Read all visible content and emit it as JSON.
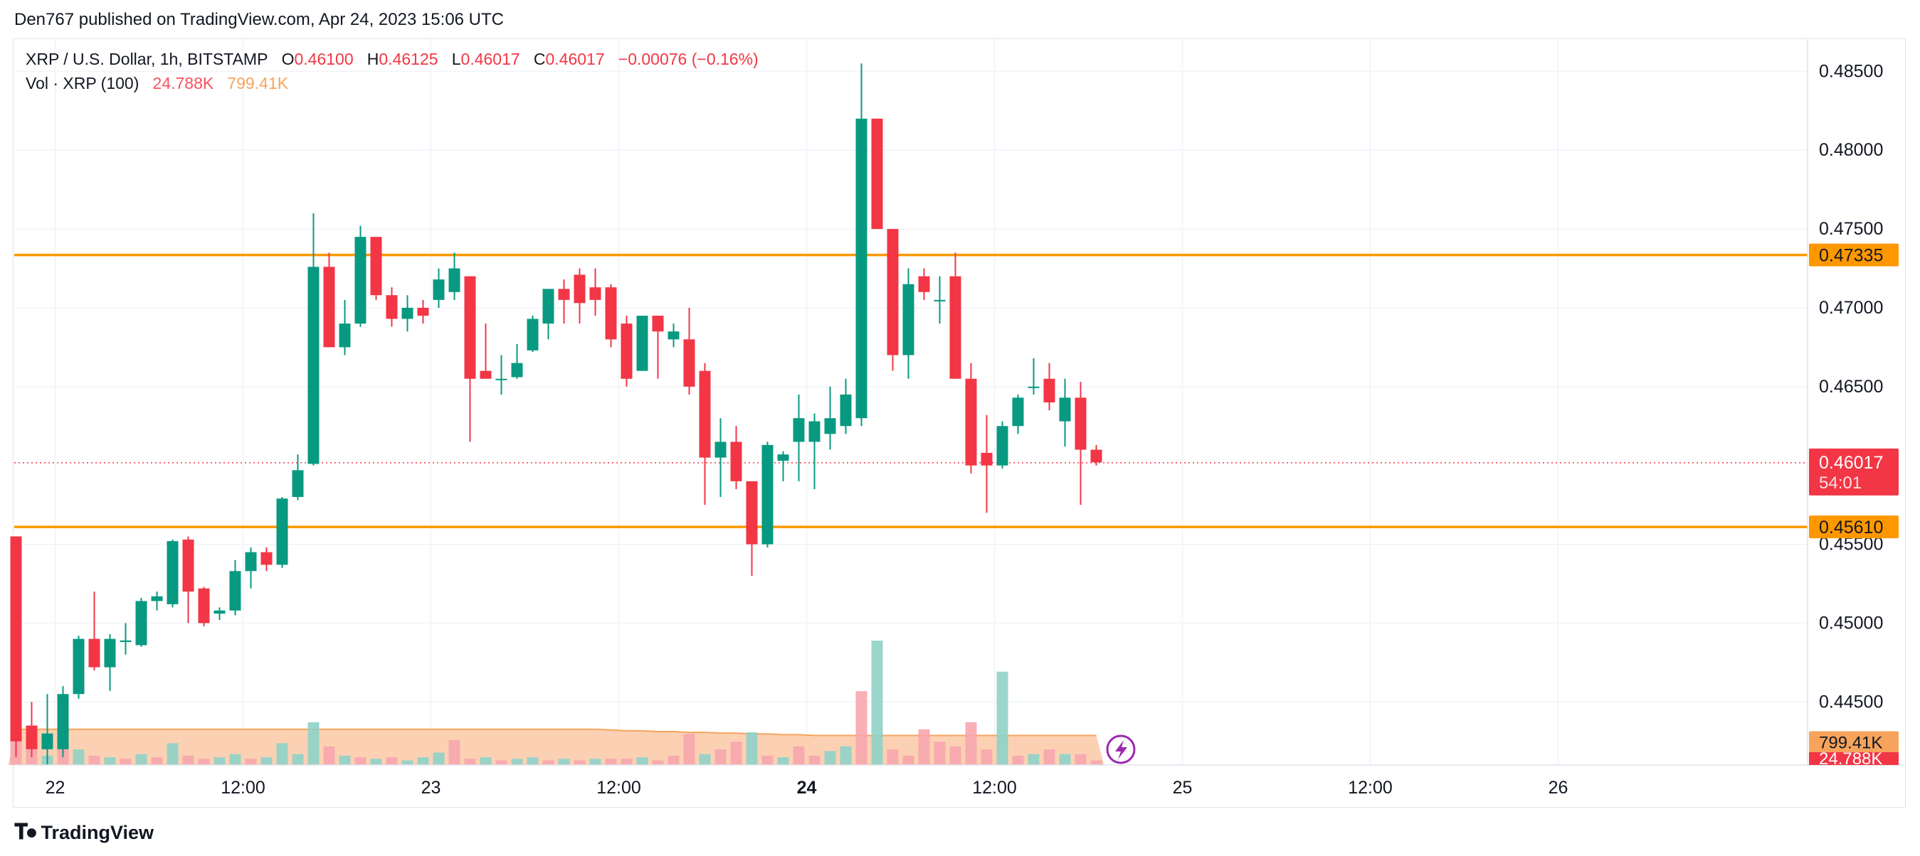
{
  "header": {
    "published_text": "Den767 published on TradingView.com, Apr 24, 2023 15:06 UTC"
  },
  "legend": {
    "symbol": "XRP / U.S. Dollar, 1h, BITSTAMP",
    "o_label": "O",
    "o_value": "0.46100",
    "h_label": "H",
    "h_value": "0.46125",
    "l_label": "L",
    "l_value": "0.46017",
    "c_label": "C",
    "c_value": "0.46017",
    "change": "−0.00076 (−0.16%)",
    "vol_label": "Vol · XRP (100)",
    "vol_value": "24.788K",
    "vol_ma_value": "799.41K"
  },
  "footer": {
    "brand": "TradingView"
  },
  "colors": {
    "up": "#089981",
    "down": "#f23645",
    "vol_up": "#8fd1c7",
    "vol_down": "#f7a6ad",
    "vol_ma_fill": "#fcc9a6",
    "level": "#ff9800",
    "grid": "#f0f3fa"
  },
  "chart_data": {
    "type": "candlestick",
    "symbol": "XRP / U.S. Dollar",
    "interval": "1h",
    "exchange": "BITSTAMP",
    "y_ticks": [
      "0.48500",
      "0.48000",
      "0.47500",
      "0.47000",
      "0.46500",
      "0.45500",
      "0.45000",
      "0.44500"
    ],
    "x_ticks": [
      {
        "label": "22",
        "bold": false,
        "index": 2.5
      },
      {
        "label": "12:00",
        "bold": false,
        "index": 14.5
      },
      {
        "label": "23",
        "bold": false,
        "index": 26.5
      },
      {
        "label": "12:00",
        "bold": false,
        "index": 38.5
      },
      {
        "label": "24",
        "bold": true,
        "index": 50.5
      },
      {
        "label": "12:00",
        "bold": false,
        "index": 62.5
      },
      {
        "label": "25",
        "bold": false,
        "index": 74.5
      },
      {
        "label": "12:00",
        "bold": false,
        "index": 86.5
      },
      {
        "label": "26",
        "bold": false,
        "index": 98.5
      }
    ],
    "ylim": [
      0.441,
      0.487
    ],
    "xlim": [
      0,
      113
    ],
    "grid": true,
    "horizontal_levels": [
      {
        "value": 0.47335,
        "label": "0.47335",
        "color": "#ff9800"
      },
      {
        "value": 0.4561,
        "label": "0.45610",
        "color": "#ff9800"
      }
    ],
    "last_price": {
      "value": 0.46017,
      "label": "0.46017",
      "countdown": "54:01"
    },
    "volume_axis_labels": [
      {
        "label": "799.41K",
        "kind": "ma"
      },
      {
        "label": "24.788K",
        "kind": "last"
      }
    ],
    "candles": [
      {
        "o": 0.4555,
        "h": 0.4555,
        "l": 0.4415,
        "c": 0.4425
      },
      {
        "o": 0.4435,
        "h": 0.445,
        "l": 0.4415,
        "c": 0.442
      },
      {
        "o": 0.442,
        "h": 0.4455,
        "l": 0.441,
        "c": 0.443
      },
      {
        "o": 0.442,
        "h": 0.446,
        "l": 0.4415,
        "c": 0.4455
      },
      {
        "o": 0.4455,
        "h": 0.4492,
        "l": 0.4452,
        "c": 0.449
      },
      {
        "o": 0.449,
        "h": 0.452,
        "l": 0.447,
        "c": 0.4472
      },
      {
        "o": 0.4472,
        "h": 0.4493,
        "l": 0.4457,
        "c": 0.449
      },
      {
        "o": 0.4488,
        "h": 0.45,
        "l": 0.448,
        "c": 0.4489
      },
      {
        "o": 0.4486,
        "h": 0.4516,
        "l": 0.4485,
        "c": 0.4514
      },
      {
        "o": 0.4514,
        "h": 0.452,
        "l": 0.4508,
        "c": 0.4517
      },
      {
        "o": 0.4512,
        "h": 0.4553,
        "l": 0.451,
        "c": 0.4552
      },
      {
        "o": 0.4553,
        "h": 0.4555,
        "l": 0.45,
        "c": 0.452
      },
      {
        "o": 0.4522,
        "h": 0.4523,
        "l": 0.4498,
        "c": 0.45
      },
      {
        "o": 0.4506,
        "h": 0.451,
        "l": 0.4502,
        "c": 0.4508
      },
      {
        "o": 0.4508,
        "h": 0.454,
        "l": 0.4505,
        "c": 0.4533
      },
      {
        "o": 0.4533,
        "h": 0.4548,
        "l": 0.4522,
        "c": 0.4545
      },
      {
        "o": 0.4545,
        "h": 0.4548,
        "l": 0.4533,
        "c": 0.4537
      },
      {
        "o": 0.4537,
        "h": 0.458,
        "l": 0.4535,
        "c": 0.4579
      },
      {
        "o": 0.458,
        "h": 0.4607,
        "l": 0.4578,
        "c": 0.4597
      },
      {
        "o": 0.4601,
        "h": 0.476,
        "l": 0.46,
        "c": 0.4726
      },
      {
        "o": 0.4726,
        "h": 0.4735,
        "l": 0.4675,
        "c": 0.4675
      },
      {
        "o": 0.4675,
        "h": 0.4705,
        "l": 0.467,
        "c": 0.469
      },
      {
        "o": 0.469,
        "h": 0.4752,
        "l": 0.4688,
        "c": 0.4745
      },
      {
        "o": 0.4745,
        "h": 0.4745,
        "l": 0.4705,
        "c": 0.4708
      },
      {
        "o": 0.4708,
        "h": 0.4713,
        "l": 0.4688,
        "c": 0.4693
      },
      {
        "o": 0.4693,
        "h": 0.4708,
        "l": 0.4685,
        "c": 0.47
      },
      {
        "o": 0.47,
        "h": 0.4705,
        "l": 0.469,
        "c": 0.4695
      },
      {
        "o": 0.4705,
        "h": 0.4725,
        "l": 0.47,
        "c": 0.4718
      },
      {
        "o": 0.471,
        "h": 0.4735,
        "l": 0.4705,
        "c": 0.4725
      },
      {
        "o": 0.472,
        "h": 0.472,
        "l": 0.4615,
        "c": 0.4655
      },
      {
        "o": 0.466,
        "h": 0.469,
        "l": 0.4655,
        "c": 0.4655
      },
      {
        "o": 0.4655,
        "h": 0.467,
        "l": 0.4645,
        "c": 0.4655
      },
      {
        "o": 0.4656,
        "h": 0.4677,
        "l": 0.4655,
        "c": 0.4665
      },
      {
        "o": 0.4673,
        "h": 0.4695,
        "l": 0.4672,
        "c": 0.4693
      },
      {
        "o": 0.469,
        "h": 0.471,
        "l": 0.468,
        "c": 0.4712
      },
      {
        "o": 0.4712,
        "h": 0.4718,
        "l": 0.469,
        "c": 0.4705
      },
      {
        "o": 0.4721,
        "h": 0.4725,
        "l": 0.469,
        "c": 0.4703
      },
      {
        "o": 0.4713,
        "h": 0.4725,
        "l": 0.4695,
        "c": 0.4705
      },
      {
        "o": 0.4713,
        "h": 0.4715,
        "l": 0.4675,
        "c": 0.468
      },
      {
        "o": 0.469,
        "h": 0.4695,
        "l": 0.465,
        "c": 0.4655
      },
      {
        "o": 0.466,
        "h": 0.4695,
        "l": 0.466,
        "c": 0.4695
      },
      {
        "o": 0.4695,
        "h": 0.4695,
        "l": 0.4655,
        "c": 0.4685
      },
      {
        "o": 0.468,
        "h": 0.469,
        "l": 0.4675,
        "c": 0.4685
      },
      {
        "o": 0.468,
        "h": 0.47,
        "l": 0.4645,
        "c": 0.465
      },
      {
        "o": 0.466,
        "h": 0.4665,
        "l": 0.4575,
        "c": 0.4605
      },
      {
        "o": 0.4605,
        "h": 0.463,
        "l": 0.458,
        "c": 0.4615
      },
      {
        "o": 0.4615,
        "h": 0.4625,
        "l": 0.4585,
        "c": 0.459
      },
      {
        "o": 0.459,
        "h": 0.459,
        "l": 0.453,
        "c": 0.455
      },
      {
        "o": 0.455,
        "h": 0.4615,
        "l": 0.4548,
        "c": 0.4613
      },
      {
        "o": 0.4603,
        "h": 0.4609,
        "l": 0.459,
        "c": 0.4607
      },
      {
        "o": 0.4615,
        "h": 0.4645,
        "l": 0.459,
        "c": 0.463
      },
      {
        "o": 0.4615,
        "h": 0.4633,
        "l": 0.4585,
        "c": 0.4628
      },
      {
        "o": 0.462,
        "h": 0.465,
        "l": 0.461,
        "c": 0.463
      },
      {
        "o": 0.4625,
        "h": 0.4655,
        "l": 0.462,
        "c": 0.4645
      },
      {
        "o": 0.463,
        "h": 0.4855,
        "l": 0.4625,
        "c": 0.482
      },
      {
        "o": 0.482,
        "h": 0.482,
        "l": 0.475,
        "c": 0.475
      },
      {
        "o": 0.475,
        "h": 0.475,
        "l": 0.466,
        "c": 0.467
      },
      {
        "o": 0.467,
        "h": 0.4725,
        "l": 0.4655,
        "c": 0.4715
      },
      {
        "o": 0.472,
        "h": 0.4725,
        "l": 0.4705,
        "c": 0.471
      },
      {
        "o": 0.4705,
        "h": 0.472,
        "l": 0.469,
        "c": 0.4705
      },
      {
        "o": 0.472,
        "h": 0.4735,
        "l": 0.4655,
        "c": 0.4655
      },
      {
        "o": 0.4655,
        "h": 0.4665,
        "l": 0.4595,
        "c": 0.46
      },
      {
        "o": 0.4608,
        "h": 0.4632,
        "l": 0.457,
        "c": 0.46
      },
      {
        "o": 0.46,
        "h": 0.4628,
        "l": 0.4598,
        "c": 0.4625
      },
      {
        "o": 0.4625,
        "h": 0.4645,
        "l": 0.462,
        "c": 0.4643
      },
      {
        "o": 0.465,
        "h": 0.4668,
        "l": 0.4645,
        "c": 0.465
      },
      {
        "o": 0.4655,
        "h": 0.4665,
        "l": 0.4635,
        "c": 0.464
      },
      {
        "o": 0.4628,
        "h": 0.4655,
        "l": 0.4612,
        "c": 0.4643
      },
      {
        "o": 0.4643,
        "h": 0.4653,
        "l": 0.4575,
        "c": 0.461
      },
      {
        "o": 0.461,
        "h": 0.4613,
        "l": 0.46,
        "c": 0.4602
      }
    ],
    "volumes": [
      {
        "v": 130,
        "up": false
      },
      {
        "v": 32,
        "up": false
      },
      {
        "v": 12,
        "up": true
      },
      {
        "v": 30,
        "up": false
      },
      {
        "v": 20,
        "up": true
      },
      {
        "v": 12,
        "up": false
      },
      {
        "v": 10,
        "up": true
      },
      {
        "v": 8,
        "up": false
      },
      {
        "v": 14,
        "up": true
      },
      {
        "v": 10,
        "up": false
      },
      {
        "v": 28,
        "up": true
      },
      {
        "v": 12,
        "up": false
      },
      {
        "v": 8,
        "up": false
      },
      {
        "v": 10,
        "up": true
      },
      {
        "v": 14,
        "up": true
      },
      {
        "v": 8,
        "up": false
      },
      {
        "v": 10,
        "up": true
      },
      {
        "v": 28,
        "up": true
      },
      {
        "v": 14,
        "up": true
      },
      {
        "v": 55,
        "up": true
      },
      {
        "v": 24,
        "up": false
      },
      {
        "v": 12,
        "up": true
      },
      {
        "v": 10,
        "up": false
      },
      {
        "v": 8,
        "up": true
      },
      {
        "v": 10,
        "up": false
      },
      {
        "v": 6,
        "up": true
      },
      {
        "v": 10,
        "up": true
      },
      {
        "v": 16,
        "up": true
      },
      {
        "v": 32,
        "up": false
      },
      {
        "v": 8,
        "up": false
      },
      {
        "v": 10,
        "up": true
      },
      {
        "v": 6,
        "up": false
      },
      {
        "v": 8,
        "up": true
      },
      {
        "v": 10,
        "up": true
      },
      {
        "v": 6,
        "up": false
      },
      {
        "v": 8,
        "up": true
      },
      {
        "v": 6,
        "up": false
      },
      {
        "v": 8,
        "up": true
      },
      {
        "v": 8,
        "up": false
      },
      {
        "v": 8,
        "up": false
      },
      {
        "v": 10,
        "up": true
      },
      {
        "v": 6,
        "up": false
      },
      {
        "v": 12,
        "up": false
      },
      {
        "v": 40,
        "up": false
      },
      {
        "v": 14,
        "up": true
      },
      {
        "v": 20,
        "up": false
      },
      {
        "v": 30,
        "up": false
      },
      {
        "v": 42,
        "up": true
      },
      {
        "v": 12,
        "up": false
      },
      {
        "v": 10,
        "up": true
      },
      {
        "v": 24,
        "up": false
      },
      {
        "v": 12,
        "up": false
      },
      {
        "v": 18,
        "up": true
      },
      {
        "v": 24,
        "up": true
      },
      {
        "v": 95,
        "up": false
      },
      {
        "v": 160,
        "up": true
      },
      {
        "v": 20,
        "up": false
      },
      {
        "v": 12,
        "up": false
      },
      {
        "v": 46,
        "up": false
      },
      {
        "v": 30,
        "up": false
      },
      {
        "v": 24,
        "up": false
      },
      {
        "v": 55,
        "up": false
      },
      {
        "v": 20,
        "up": false
      },
      {
        "v": 120,
        "up": true
      },
      {
        "v": 12,
        "up": false
      },
      {
        "v": 14,
        "up": true
      },
      {
        "v": 20,
        "up": false
      },
      {
        "v": 14,
        "up": true
      },
      {
        "v": 14,
        "up": false
      },
      {
        "v": 6,
        "up": false
      }
    ],
    "vol_ma": [
      46,
      46,
      46,
      46,
      46,
      46,
      46,
      46,
      46,
      46,
      46,
      46,
      46,
      46,
      46,
      46,
      46,
      46,
      46,
      46,
      46,
      46,
      46,
      46,
      46,
      46,
      46,
      46,
      46,
      46,
      46,
      46,
      46,
      46,
      46,
      46,
      46,
      46,
      45,
      44,
      44,
      43,
      43,
      42,
      42,
      41,
      41,
      40,
      40,
      39,
      39,
      38,
      38,
      38,
      38,
      38,
      38,
      38,
      38,
      38,
      38,
      38,
      38,
      38,
      38,
      38,
      38,
      38,
      38,
      38
    ]
  }
}
